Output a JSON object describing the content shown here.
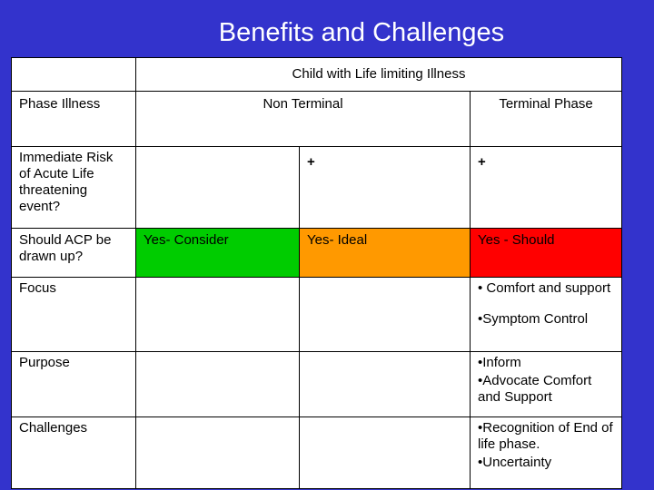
{
  "slide": {
    "title": "Benefits and Challenges"
  },
  "table": {
    "main_header": "Child with Life limiting Illness",
    "col_phase_label": "Phase Illness",
    "col_nonterminal_label": "Non Terminal",
    "col_terminal_label": "Terminal Phase",
    "row_risk": {
      "label": "Immediate Risk of Acute Life threatening event?",
      "nonterminal_mark": "+",
      "terminal_mark": "+"
    },
    "row_acp": {
      "label": "Should ACP be drawn up?",
      "col1": "Yes-  Consider",
      "col2": "Yes-    Ideal",
      "col3": "Yes - Should",
      "colors": {
        "consider": "#00cc00",
        "ideal": "#ff9900",
        "should": "#ff0000"
      }
    },
    "row_focus": {
      "label": "Focus",
      "bullets": [
        "• Comfort and support",
        "•Symptom Control"
      ]
    },
    "row_purpose": {
      "label": "Purpose",
      "bullets": [
        "•Inform",
        "•Advocate Comfort and Support"
      ]
    },
    "row_challenges": {
      "label": "Challenges",
      "bullets": [
        "•Recognition of End of life phase.",
        "•Uncertainty"
      ]
    }
  }
}
